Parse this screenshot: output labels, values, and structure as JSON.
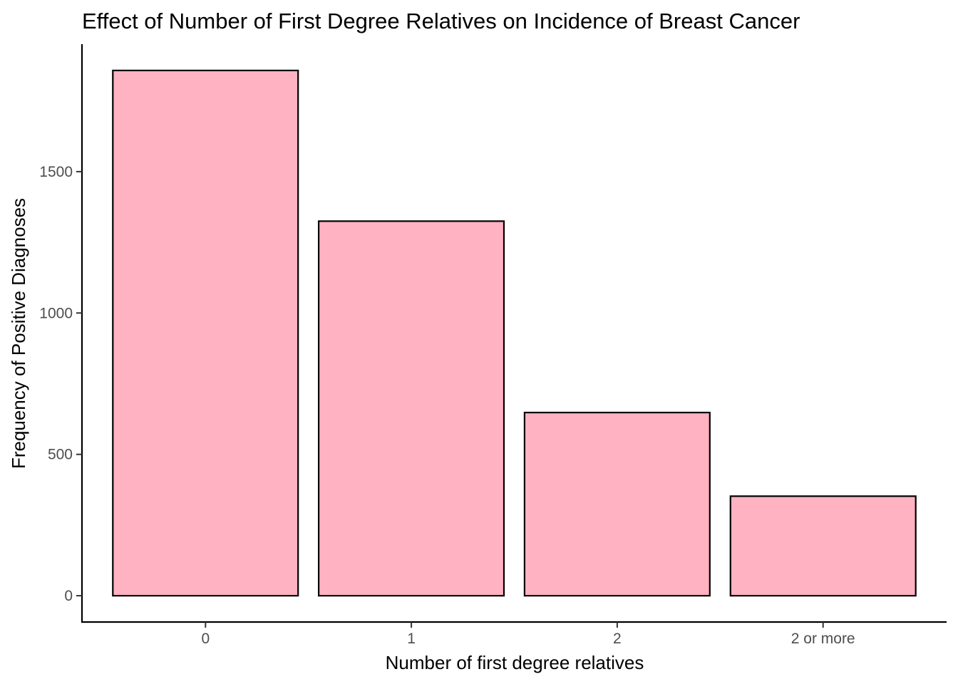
{
  "chart_data": {
    "type": "bar",
    "title": "Effect of Number of First Degree Relatives on Incidence of Breast Cancer",
    "xlabel": "Number of first degree relatives",
    "ylabel": "Frequency of Positive Diagnoses",
    "categories": [
      "0",
      "1",
      "2",
      "2 or more"
    ],
    "values": [
      1858,
      1325,
      648,
      352
    ],
    "yticks": [
      0,
      500,
      1000,
      1500
    ],
    "ylim": [
      -93,
      1951
    ],
    "grid": false,
    "legend": "none",
    "bar_fill": "#ffb2c1",
    "bar_stroke": "#000000"
  }
}
